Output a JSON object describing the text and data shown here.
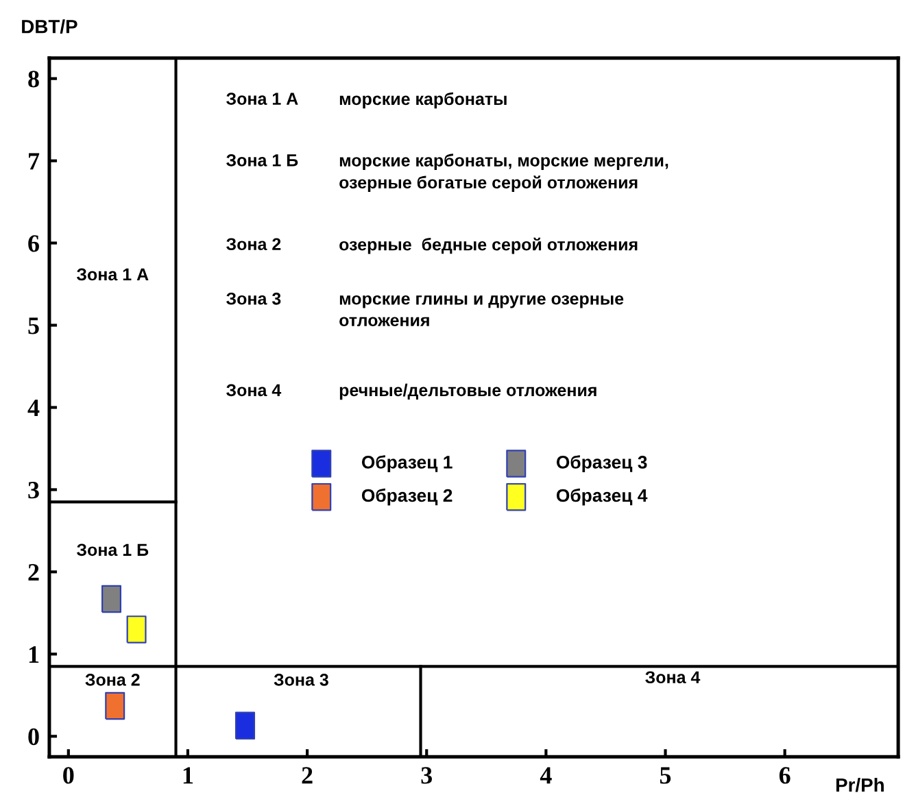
{
  "chart_data": {
    "type": "scatter",
    "xlabel": "Pr/Ph",
    "ylabel": "DBT/P",
    "xlim": [
      -0.16,
      6.95
    ],
    "ylim": [
      -0.25,
      8.25
    ],
    "xticks": [
      0,
      1,
      2,
      3,
      4,
      5,
      6
    ],
    "yticks": [
      0,
      1,
      2,
      3,
      4,
      5,
      6,
      7,
      8
    ],
    "grid": false,
    "legend": "center",
    "series": [
      {
        "name": "Образец 1",
        "color": "#1a2ee0",
        "marker": "square",
        "x": [
          1.48
        ],
        "values": [
          0.13
        ]
      },
      {
        "name": "Образец 2",
        "color": "#f07030",
        "marker": "square",
        "x": [
          0.39
        ],
        "values": [
          0.37
        ]
      },
      {
        "name": "Образец 3",
        "color": "#808080",
        "marker": "square",
        "x": [
          0.36
        ],
        "values": [
          1.67
        ]
      },
      {
        "name": "Образец 4",
        "color": "#ffff20",
        "marker": "square",
        "x": [
          0.57
        ],
        "values": [
          1.3
        ]
      },
      {
        "type": "line",
        "color": "#000000",
        "x": [
          -0.16,
          0.9
        ],
        "values": [
          2.85,
          2.85
        ]
      },
      {
        "type": "line",
        "color": "#000000",
        "x": [
          2.95,
          2.95
        ],
        "values": [
          -0.25,
          0.85
        ]
      }
    ],
    "ref_lines": [
      {
        "axis": "x",
        "value": 0.9,
        "color": "#000000"
      },
      {
        "axis": "y",
        "value": 0.85,
        "color": "#000000"
      }
    ],
    "annotations": [
      "Зона 1 А",
      "Зона 1 Б",
      "Зона 2",
      "Зона 3",
      "Зона 4",
      "Зона 1 А",
      "морские карбонаты",
      "Зона 1 Б",
      "морские карбонаты, морские мергели,\nозерные богатые серой отложения",
      "Зона 2",
      "озерные  бедные серой отложения",
      "Зона 3",
      "морские глины и другие озерные\nотложения",
      "Зона 4",
      "речные/дельтовые отложения"
    ]
  }
}
